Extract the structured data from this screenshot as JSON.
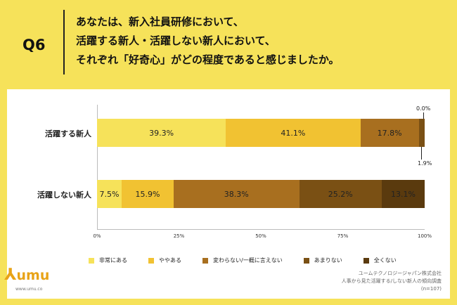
{
  "question": {
    "label": "Q6",
    "lines": [
      "あなたは、新入社員研修において、",
      "活躍する新人・活躍しない新人において、",
      "それぞれ「好奇心」がどの程度であると感じましたか。"
    ]
  },
  "chart_data": {
    "type": "bar",
    "orientation": "horizontal-stacked-100",
    "categories": [
      "活躍する新人",
      "活躍しない新人"
    ],
    "series": [
      {
        "name": "非常にある",
        "values": [
          39.3,
          7.5
        ],
        "labels": [
          "39.3%",
          "7.5%"
        ],
        "color": "#f6e25a"
      },
      {
        "name": "ややある",
        "values": [
          41.1,
          15.9
        ],
        "labels": [
          "41.1%",
          "15.9%"
        ],
        "color": "#f1c232"
      },
      {
        "name": "変わらない/一概に言えない",
        "values": [
          17.8,
          38.3
        ],
        "labels": [
          "17.8%",
          "38.3%"
        ],
        "color": "#a86f1f"
      },
      {
        "name": "あまりない",
        "values": [
          1.9,
          25.2
        ],
        "labels": [
          "1.9%",
          "25.2%"
        ],
        "color": "#7a5014"
      },
      {
        "name": "全くない",
        "values": [
          0.0,
          13.1
        ],
        "labels": [
          "0.0%",
          "13.1%"
        ],
        "color": "#5a3a0e"
      }
    ],
    "xlim": [
      0,
      100
    ],
    "ticks": [
      "0%",
      "25%",
      "50%",
      "75%",
      "100%"
    ],
    "legend_position": "bottom",
    "grid": false
  },
  "logo": {
    "brand": "umu",
    "url": "www.umu.co"
  },
  "source": {
    "lines": [
      "ユームテクノロジージャパン株式会社",
      "人事から見た活躍する/しない新人の傾向調査",
      "(n=107)"
    ]
  }
}
